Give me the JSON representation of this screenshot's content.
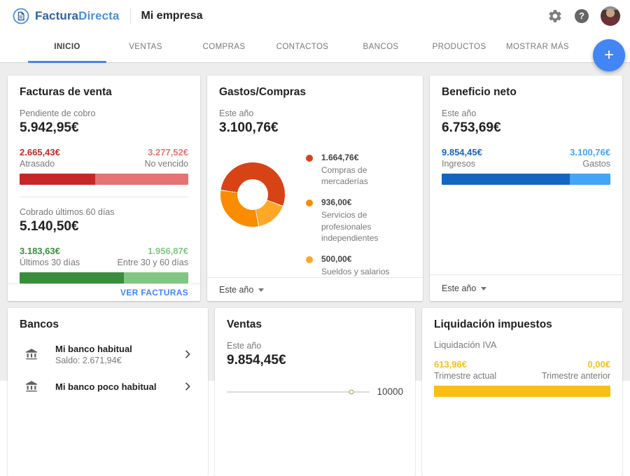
{
  "header": {
    "brand_primary": "Factura",
    "brand_secondary": "Directa",
    "company": "Mi empresa",
    "help_glyph": "?"
  },
  "nav": {
    "tabs": [
      {
        "label": "INICIO",
        "active": true
      },
      {
        "label": "VENTAS",
        "active": false
      },
      {
        "label": "COMPRAS",
        "active": false
      },
      {
        "label": "CONTACTOS",
        "active": false
      },
      {
        "label": "BANCOS",
        "active": false
      },
      {
        "label": "PRODUCTOS",
        "active": false
      },
      {
        "label": "MOSTRAR MÁS",
        "active": false
      }
    ]
  },
  "fab": {
    "label": "+",
    "color": "#4285f4"
  },
  "cards": {
    "facturas": {
      "title": "Facturas de venta",
      "pendiente": {
        "label": "Pendiente de cobro",
        "amount": "5.942,95€",
        "left_value": "2.665,43€",
        "left_label": "Atrasado",
        "right_value": "3.277,52€",
        "right_label": "No vencido",
        "left_color": "#c62828",
        "right_color": "#e57373",
        "left_pct": 44.9,
        "right_pct": 55.1
      },
      "cobrado": {
        "label": "Cobrado últimos 60 días",
        "amount": "5.140,50€",
        "left_value": "3.183,63€",
        "left_label": "Últimos 30 días",
        "right_value": "1.956,87€",
        "right_label": "Entre 30 y 60 días",
        "left_color": "#388e3c",
        "right_color": "#81c784",
        "left_pct": 61.9,
        "right_pct": 38.1
      },
      "footer_link": "VER FACTURAS"
    },
    "gastos": {
      "title": "Gastos/Compras",
      "period_label": "Este año",
      "amount": "3.100,76€",
      "legend": [
        {
          "amount": "1.664,76€",
          "label": "Compras de mercaderías",
          "color": "#d84315"
        },
        {
          "amount": "936,00€",
          "label": "Servicios de profesionales independientes",
          "color": "#fb8c00"
        },
        {
          "amount": "500,00€",
          "label": "Sueldos y salarios",
          "color": "#ffa726"
        }
      ],
      "footer_dropdown": "Este año"
    },
    "beneficio": {
      "title": "Beneficio neto",
      "period_label": "Este año",
      "amount": "6.753,69€",
      "left_value": "9.854,45€",
      "left_label": "Ingresos",
      "right_value": "3.100,76€",
      "right_label": "Gastos",
      "left_color": "#1565c0",
      "right_color": "#42a5f5",
      "left_pct": 76.1,
      "right_pct": 23.9,
      "footer_dropdown": "Este año"
    },
    "bancos": {
      "title": "Bancos",
      "items": [
        {
          "name": "Mi banco habitual",
          "saldo": "Saldo: 2.671,94€"
        },
        {
          "name": "Mi banco poco habitual",
          "saldo": ""
        }
      ]
    },
    "ventas": {
      "title": "Ventas",
      "period_label": "Este año",
      "amount": "9.854,45€",
      "gauge_max_label": "10000",
      "marker_pct": 87,
      "marker_color": "#7cb342"
    },
    "impuestos": {
      "title": "Liquidación impuestos",
      "subtitle": "Liquidación IVA",
      "left_value": "613,96€",
      "left_label": "Trimestre actual",
      "right_value": "0,00€",
      "right_label": "Trimestre anterior",
      "accent_color": "#f9bf17",
      "left_pct": 100,
      "right_pct": 0
    }
  },
  "chart_data": [
    {
      "type": "pie",
      "title": "Gastos/Compras — Este año",
      "total_label": "3.100,76€",
      "total_value": 3100.76,
      "segments": [
        {
          "label": "Compras de mercaderías",
          "value": 1664.76,
          "color": "#d84315"
        },
        {
          "label": "Servicios de profesionales independientes",
          "value": 936.0,
          "color": "#fb8c00"
        },
        {
          "label": "Sueldos y salarios",
          "value": 500.0,
          "color": "#ffa726"
        }
      ],
      "render_order": [
        0,
        2,
        1
      ],
      "start_angle_deg": 277,
      "donut": true,
      "legend_position": "right"
    },
    {
      "type": "bar",
      "title": "Facturas de venta — Pendiente de cobro (stacked)",
      "categories": [
        "Atrasado",
        "No vencido"
      ],
      "values": [
        2665.43,
        3277.52
      ],
      "total": 5942.95
    },
    {
      "type": "bar",
      "title": "Facturas de venta — Cobrado últimos 60 días (stacked)",
      "categories": [
        "Últimos 30 días",
        "Entre 30 y 60 días"
      ],
      "values": [
        3183.63,
        1956.87
      ],
      "total": 5140.5
    },
    {
      "type": "bar",
      "title": "Beneficio neto — Este año (stacked)",
      "categories": [
        "Ingresos",
        "Gastos"
      ],
      "values": [
        9854.45,
        3100.76
      ],
      "net": 6753.69
    },
    {
      "type": "bar",
      "title": "Liquidación IVA (stacked)",
      "categories": [
        "Trimestre actual",
        "Trimestre anterior"
      ],
      "values": [
        613.96,
        0.0
      ]
    },
    {
      "type": "scatter",
      "title": "Ventas — Este año (gauge)",
      "x": [
        9854.45
      ],
      "xlabel": "",
      "axis_max_label": "10000"
    }
  ]
}
